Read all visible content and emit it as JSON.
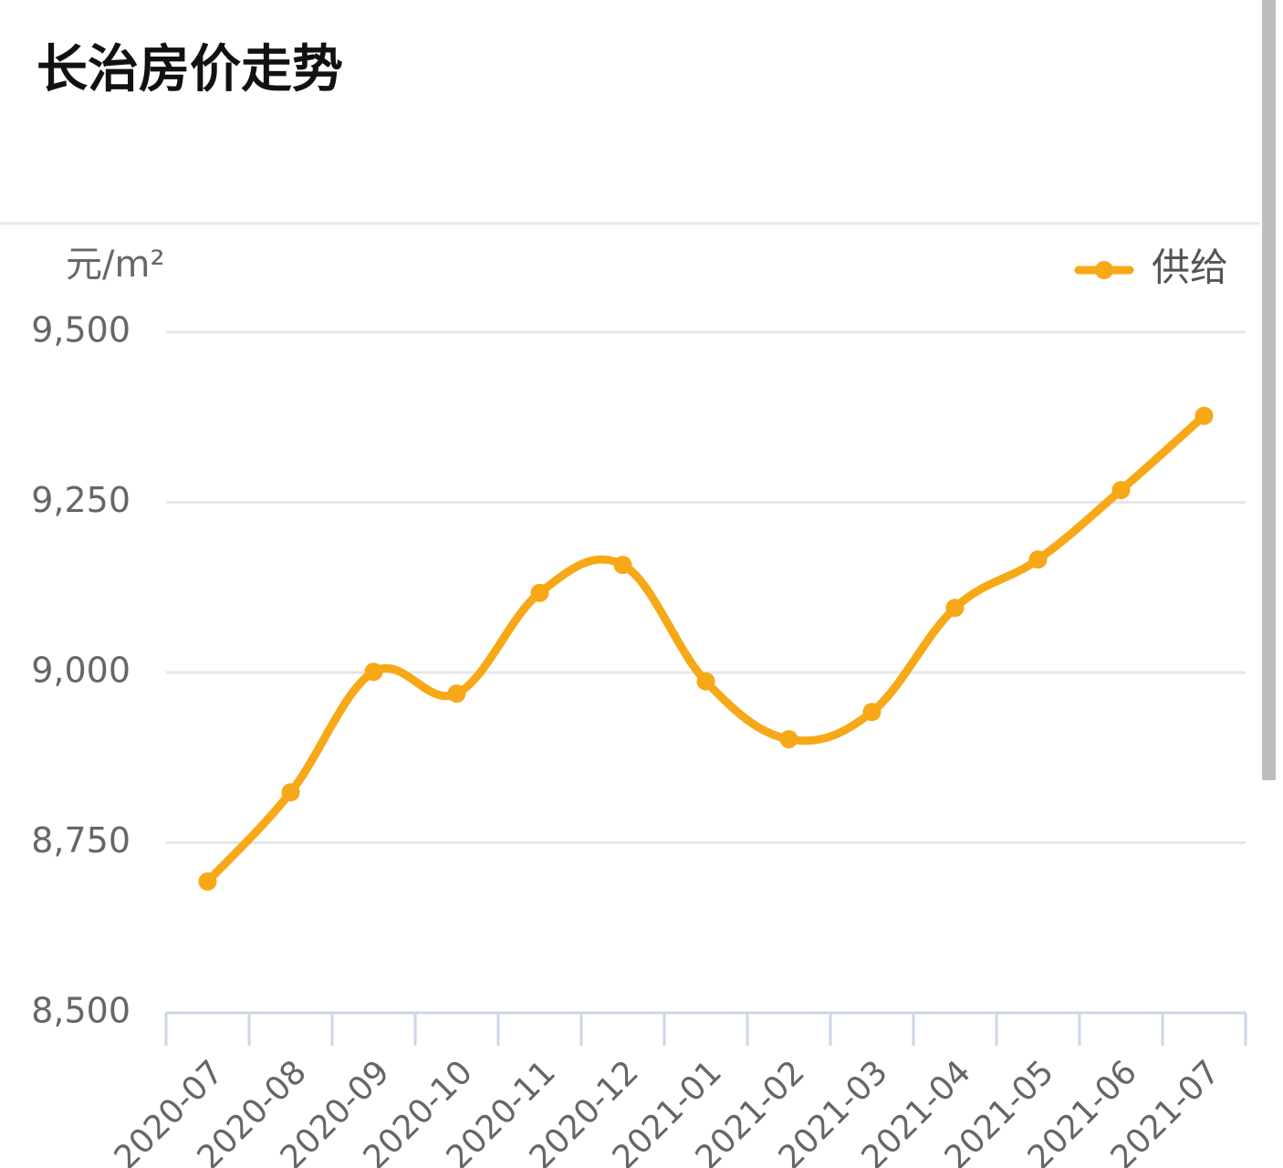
{
  "chart_data": {
    "type": "line",
    "title": "长治房价走势",
    "y_unit": "元/m²",
    "categories": [
      "2020-07",
      "2020-08",
      "2020-09",
      "2020-10",
      "2020-11",
      "2020-12",
      "2021-01",
      "2021-02",
      "2021-03",
      "2021-04",
      "2021-05",
      "2021-06",
      "2021-07"
    ],
    "series": [
      {
        "name": "供给",
        "color": "#f7a816",
        "values": [
          8693,
          8824,
          9001,
          8969,
          9117,
          9158,
          8987,
          8902,
          8942,
          9095,
          9166,
          9268,
          9377
        ]
      }
    ],
    "ylim": [
      8500,
      9500
    ],
    "yticks": [
      {
        "value": 8500,
        "label": "8,500"
      },
      {
        "value": 8750,
        "label": "8,750"
      },
      {
        "value": 9000,
        "label": "9,000"
      },
      {
        "value": 9250,
        "label": "9,250"
      },
      {
        "value": 9500,
        "label": "9,500"
      }
    ],
    "grid": true,
    "legend": "top-right"
  }
}
